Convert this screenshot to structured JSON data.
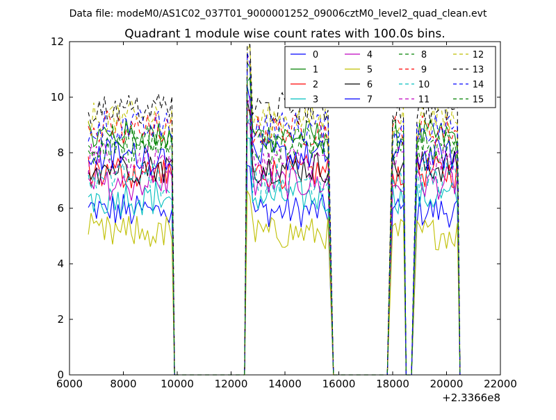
{
  "figure": {
    "suptitle": "Data file: modeM0/AS1C02_037T01_9000001252_09006cztM0_level2_quad_clean.evt"
  },
  "chart_data": {
    "type": "line",
    "title": "Quadrant 1 module wise count rates with 100.0s bins.",
    "xlabel": "",
    "ylabel": "",
    "xlim": [
      6000,
      22000
    ],
    "ylim": [
      0,
      12
    ],
    "x_ticks": [
      "6000",
      "8000",
      "10000",
      "12000",
      "14000",
      "16000",
      "18000",
      "20000",
      "22000"
    ],
    "y_ticks": [
      "0",
      "2",
      "4",
      "6",
      "8",
      "10",
      "12"
    ],
    "x_offset_label": "+2.3366e8",
    "grid": false,
    "legend_position": "top-right",
    "legend_columns": 4,
    "x_step": 100,
    "segments": [
      {
        "start": 6700,
        "end": 9800,
        "drop_to_zero": 9900
      },
      {
        "start": 12600,
        "end": 15600,
        "rise_from_zero": 12500,
        "drop_to_zero": 15800
      },
      {
        "start": 18000,
        "end": 18400,
        "rise_from_zero": 17800,
        "drop_to_zero": 18500
      },
      {
        "start": 18900,
        "end": 20400,
        "rise_from_zero": 18700,
        "drop_to_zero": 20500
      }
    ],
    "zero_gaps": [
      [
        9900,
        12500
      ],
      [
        15800,
        17800
      ],
      [
        18500,
        18700
      ]
    ],
    "series": [
      {
        "name": "0",
        "color": "#0000ff",
        "dash": "solid",
        "level": 5.9
      },
      {
        "name": "1",
        "color": "#008000",
        "dash": "solid",
        "level": 8.6
      },
      {
        "name": "2",
        "color": "#ff0000",
        "dash": "solid",
        "level": 7.3
      },
      {
        "name": "3",
        "color": "#00bfbf",
        "dash": "solid",
        "level": 6.4
      },
      {
        "name": "4",
        "color": "#bf00bf",
        "dash": "solid",
        "level": 6.9
      },
      {
        "name": "5",
        "color": "#bfbf00",
        "dash": "solid",
        "level": 5.1
      },
      {
        "name": "6",
        "color": "#000000",
        "dash": "solid",
        "level": 7.5
      },
      {
        "name": "7",
        "color": "#0000ff",
        "dash": "solid",
        "level": 7.9
      },
      {
        "name": "8",
        "color": "#008000",
        "dash": "dashed",
        "level": 8.2
      },
      {
        "name": "9",
        "color": "#ff0000",
        "dash": "dashed",
        "level": 8.8
      },
      {
        "name": "10",
        "color": "#00bfbf",
        "dash": "dashed",
        "level": 7.1
      },
      {
        "name": "11",
        "color": "#bf00bf",
        "dash": "dashed",
        "level": 7.7
      },
      {
        "name": "12",
        "color": "#bfbf00",
        "dash": "dashed",
        "level": 9.2
      },
      {
        "name": "13",
        "color": "#000000",
        "dash": "dashed",
        "level": 9.6
      },
      {
        "name": "14",
        "color": "#0000ff",
        "dash": "dashed",
        "level": 8.9
      },
      {
        "name": "15",
        "color": "#008000",
        "dash": "dashed",
        "level": 8.4
      }
    ]
  }
}
